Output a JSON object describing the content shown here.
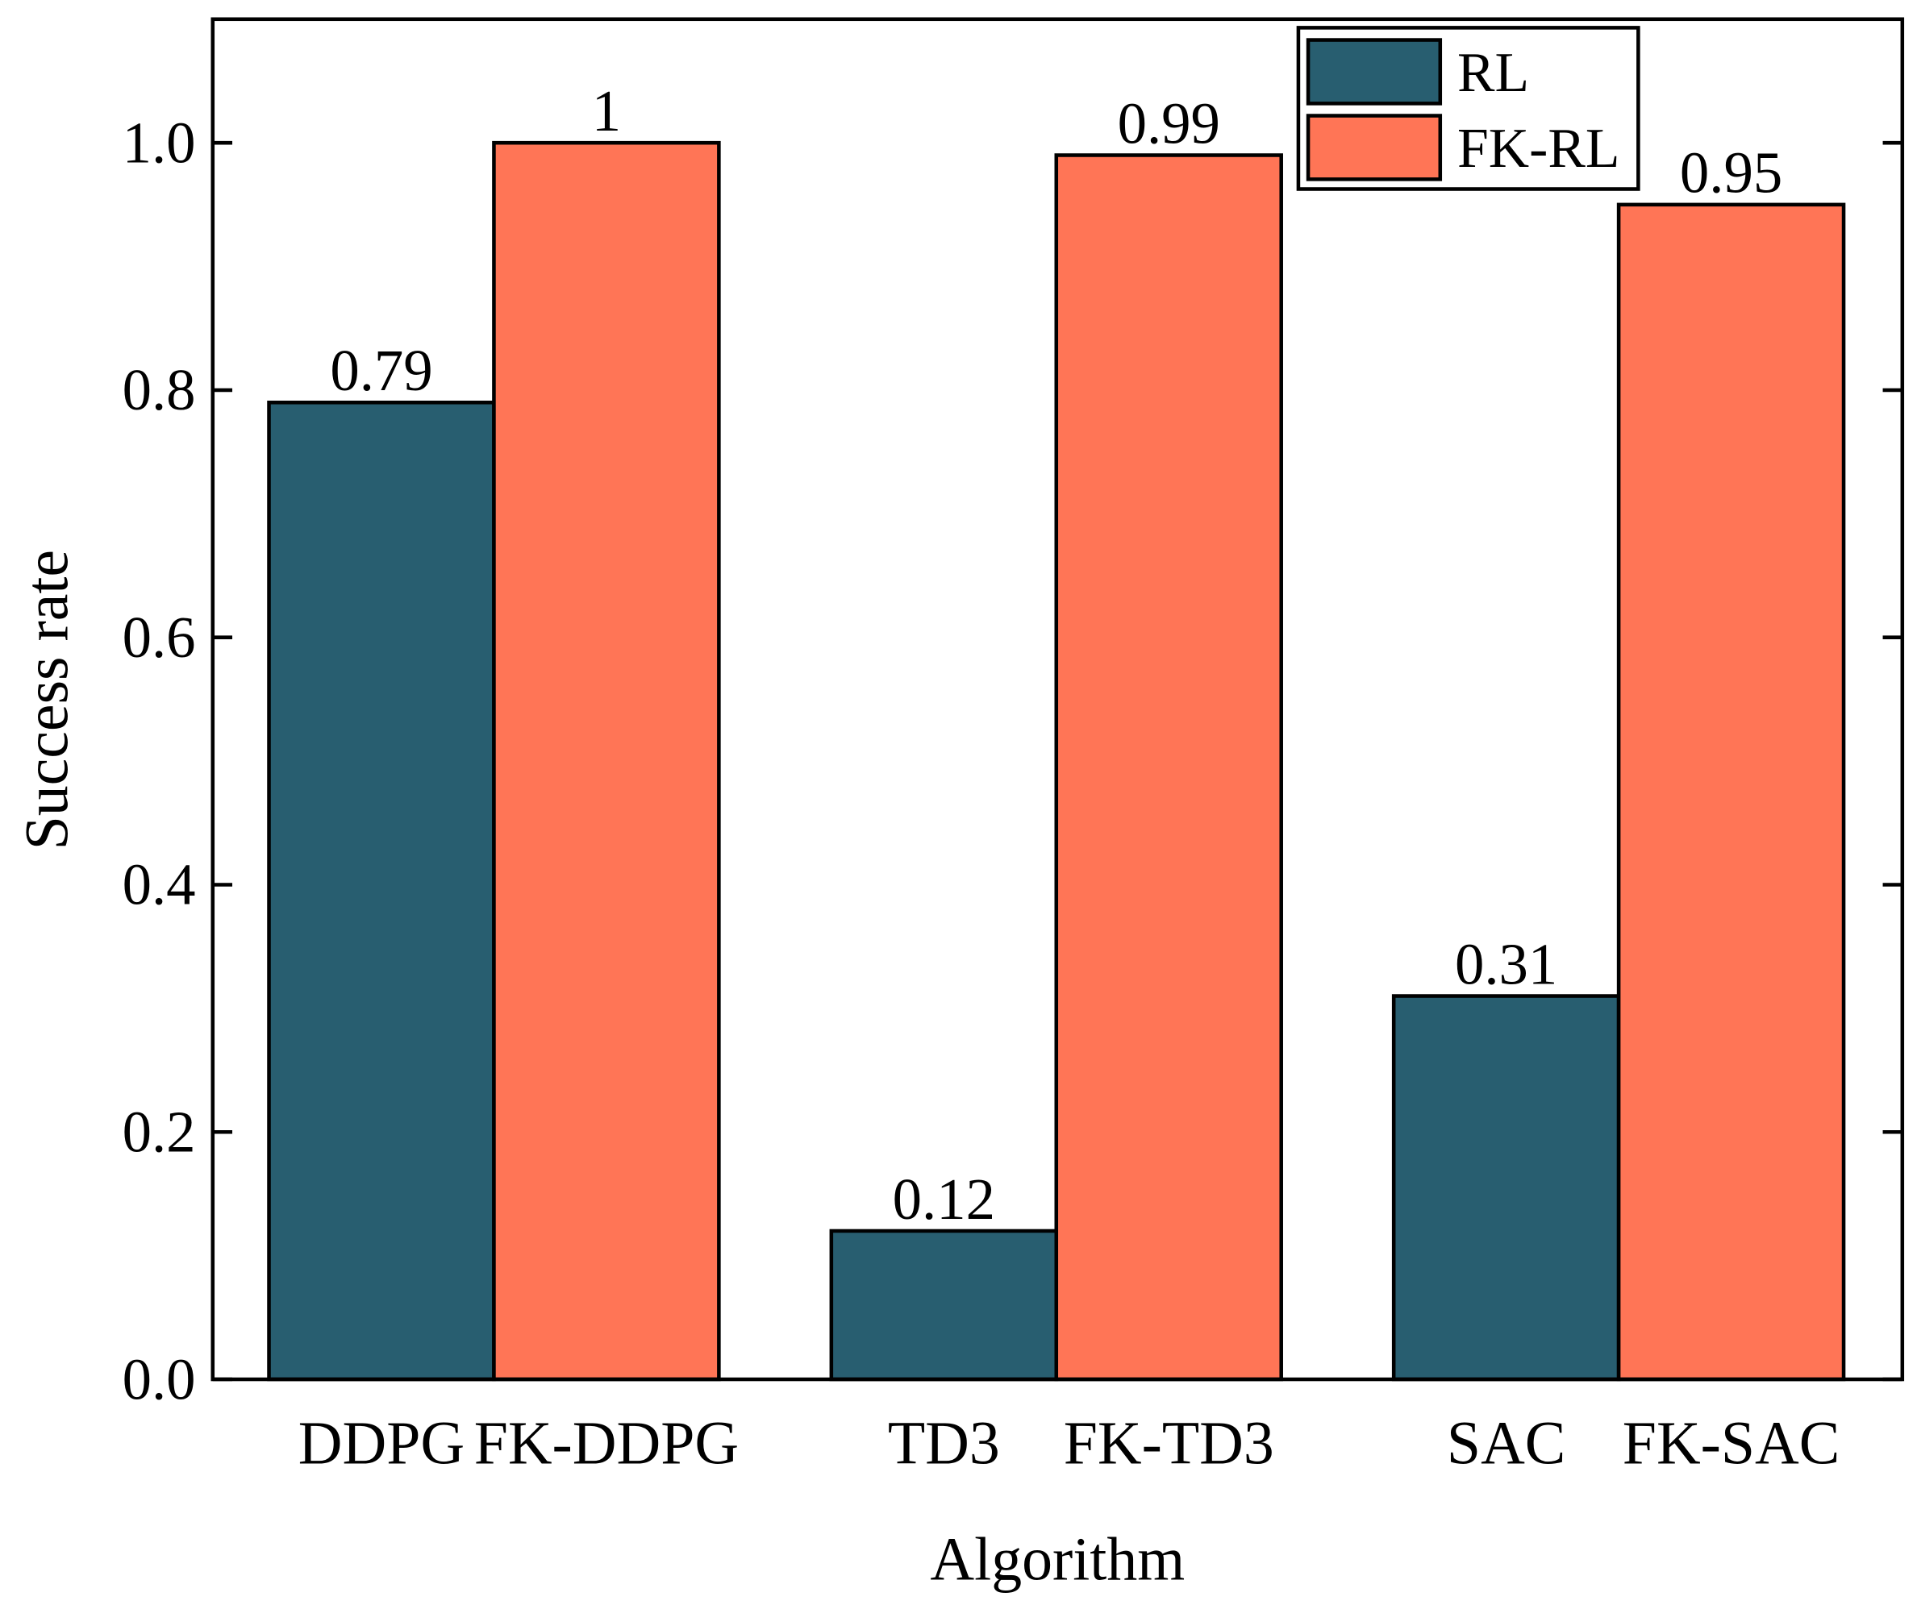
{
  "chart_data": {
    "type": "bar",
    "x_label": "Algorithm",
    "y_label": "Success rate",
    "categories": [
      "DDPG",
      "FK-DDPG",
      "TD3",
      "FK-TD3",
      "SAC",
      "FK-SAC"
    ],
    "series": [
      {
        "name": "RL",
        "color": "#285e70",
        "values": [
          0.79,
          null,
          0.12,
          null,
          0.31,
          null
        ]
      },
      {
        "name": "FK-RL",
        "color": "#ff7556",
        "values": [
          null,
          1,
          null,
          0.99,
          null,
          0.95
        ]
      }
    ],
    "ylim": [
      0,
      1.1
    ],
    "yticks": [
      {
        "value": 0,
        "label": "0.0"
      },
      0.2,
      0.4,
      0.6,
      0.8,
      {
        "value": 1,
        "label": "1.0"
      }
    ],
    "legend": "upper right"
  }
}
